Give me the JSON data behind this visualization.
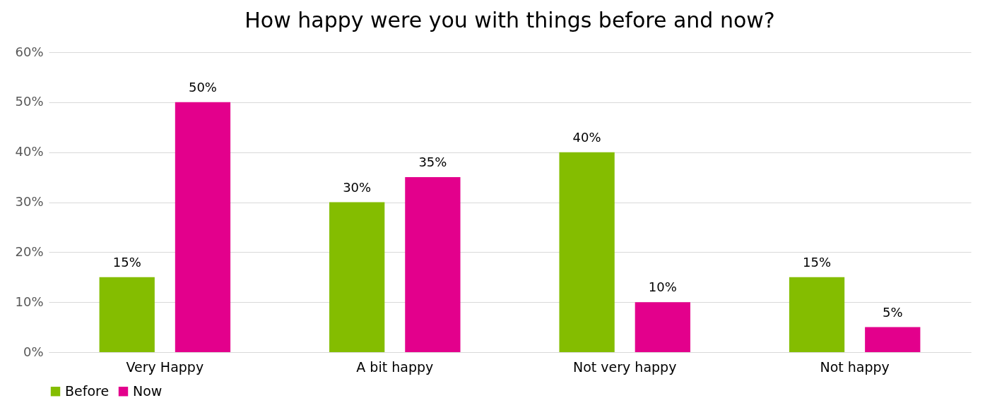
{
  "chart_data": {
    "type": "bar",
    "title": "How happy were you with things before and now?",
    "categories": [
      "Very Happy",
      "A bit happy",
      "Not very happy",
      "Not happy"
    ],
    "series": [
      {
        "name": "Before",
        "color": "#84bd00",
        "values": [
          15,
          30,
          40,
          15
        ],
        "value_labels": [
          "15%",
          "30%",
          "40%",
          "15%"
        ]
      },
      {
        "name": "Now",
        "color": "#e3008c",
        "values": [
          50,
          35,
          10,
          5
        ],
        "value_labels": [
          "50%",
          "35%",
          "10%",
          "5%"
        ]
      }
    ],
    "ylim": [
      0,
      60
    ],
    "yticks": [
      {
        "value": 0,
        "label": "0%"
      },
      {
        "value": 10,
        "label": "10%"
      },
      {
        "value": 20,
        "label": "20%"
      },
      {
        "value": 30,
        "label": "30%"
      },
      {
        "value": 40,
        "label": "40%"
      },
      {
        "value": 50,
        "label": "50%"
      },
      {
        "value": 60,
        "label": "60%"
      }
    ],
    "grid": "y",
    "legend": "bottom"
  }
}
